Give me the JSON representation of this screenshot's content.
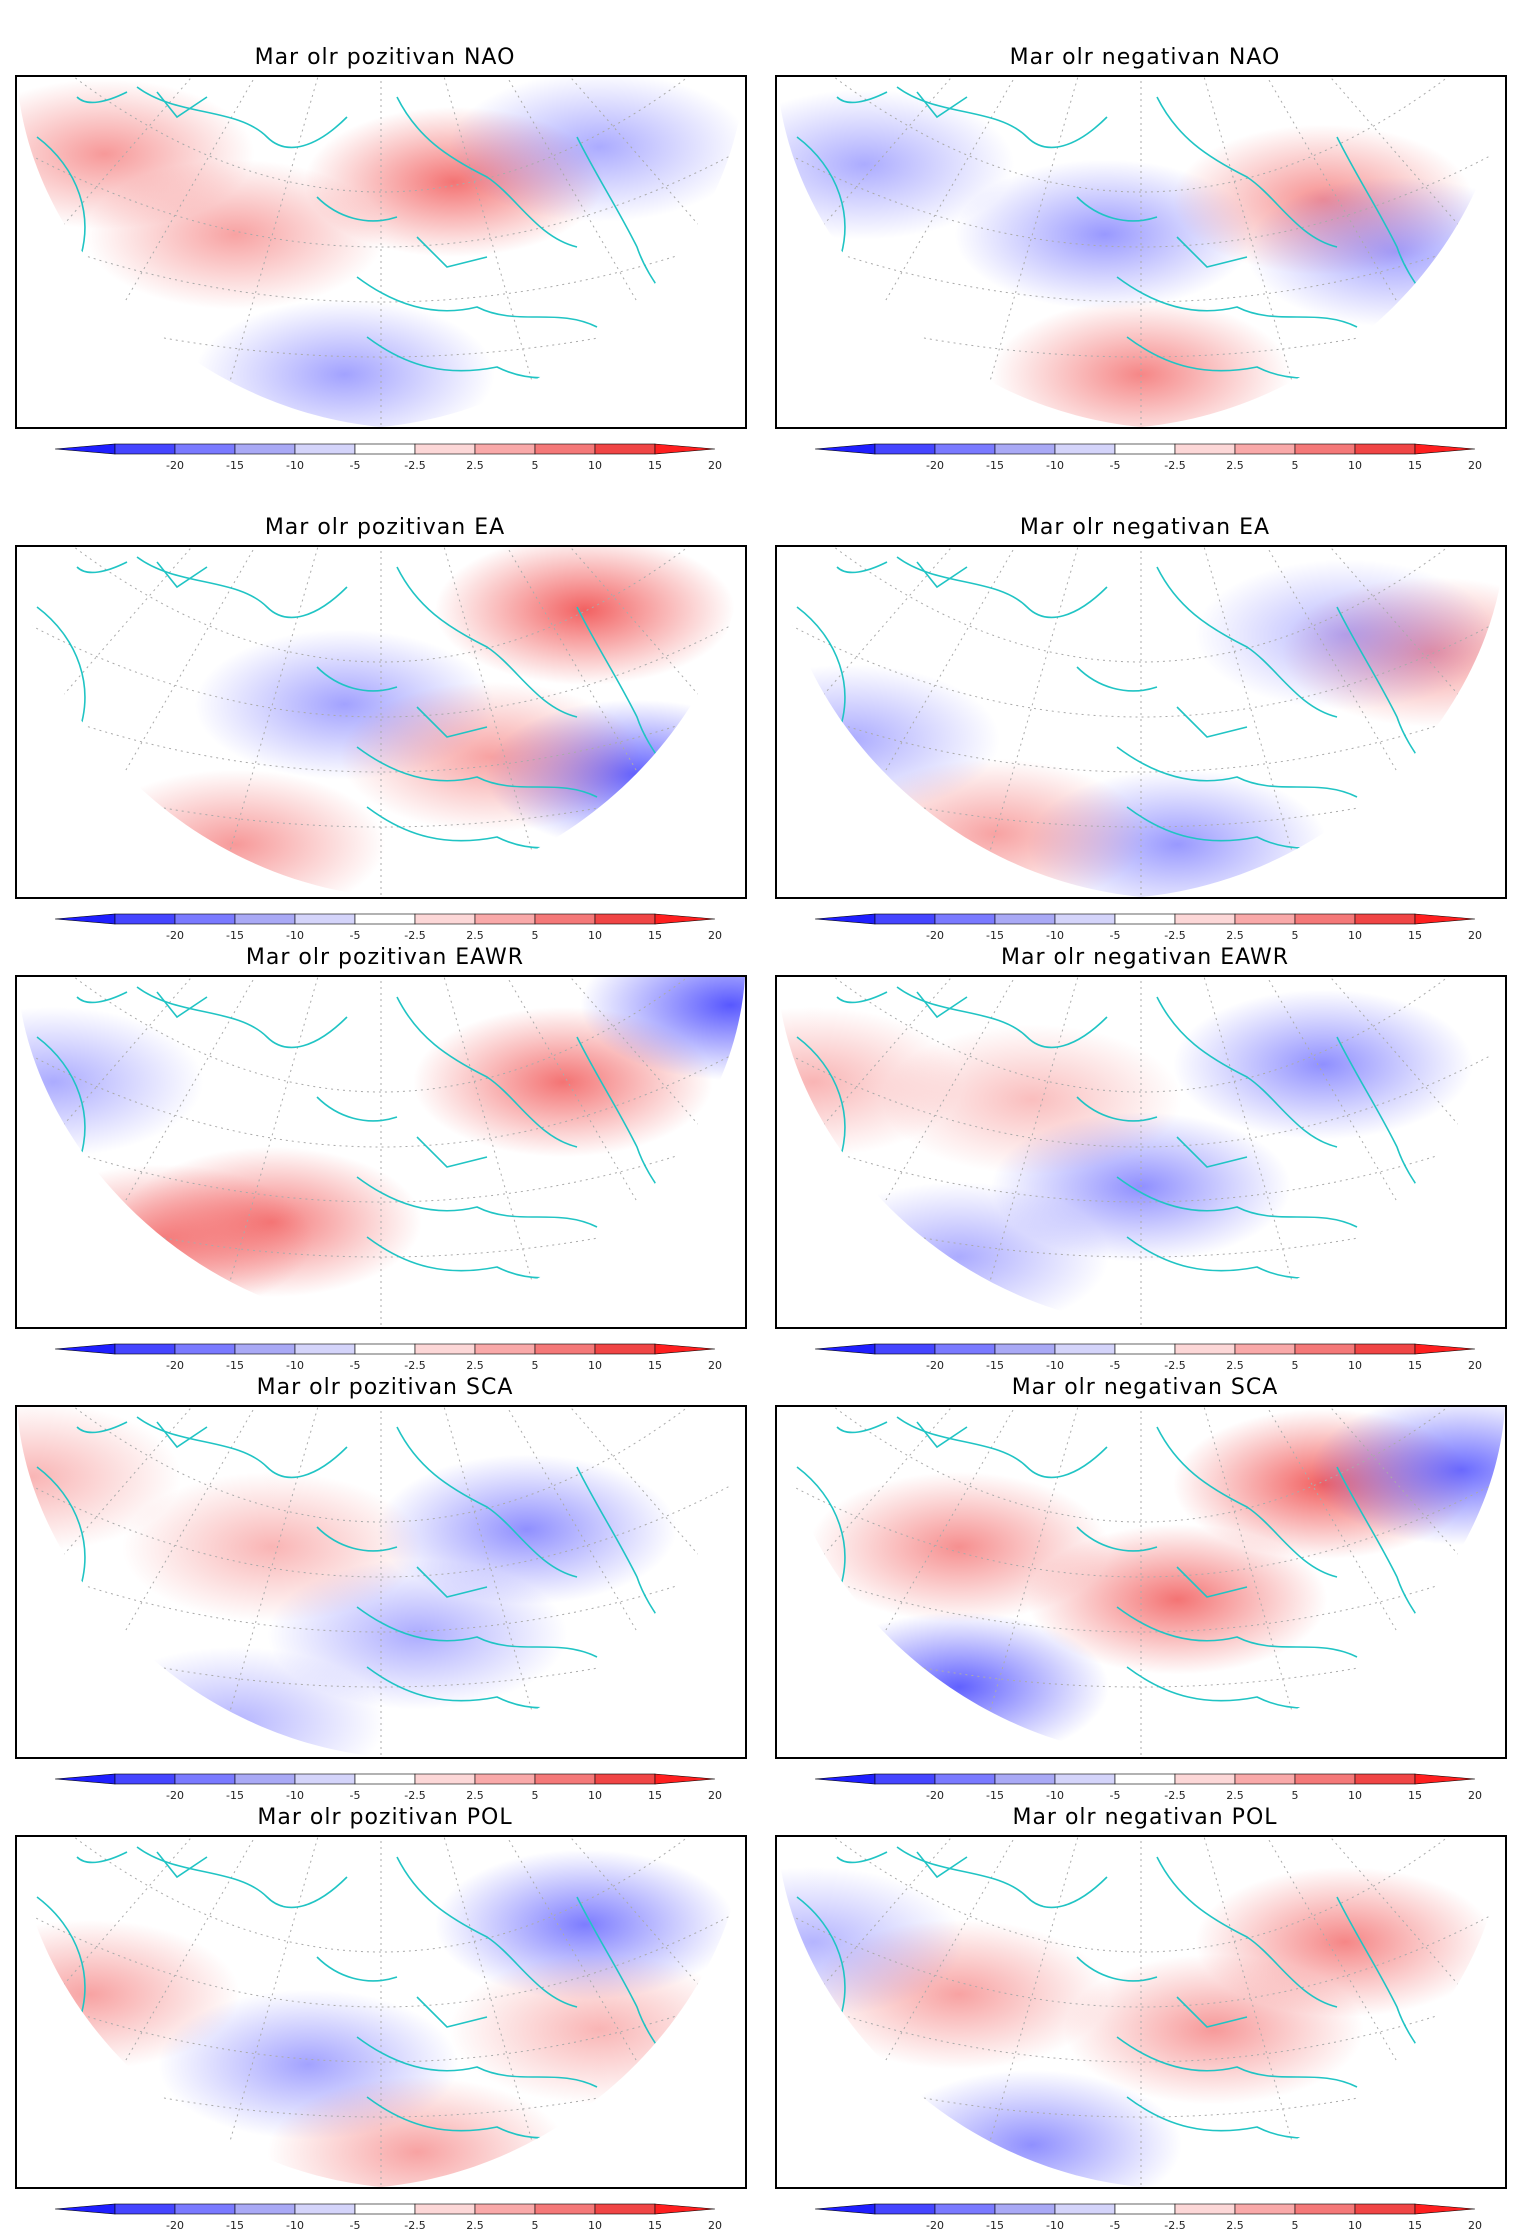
{
  "panels": [
    {
      "title": "Mar olr pozitivan NAO",
      "pattern": "NAO",
      "phase": "pozitivan"
    },
    {
      "title": "Mar olr negativan NAO",
      "pattern": "NAO",
      "phase": "negativan"
    },
    {
      "title": "Mar olr pozitivan EA",
      "pattern": "EA",
      "phase": "pozitivan"
    },
    {
      "title": "Mar olr negativan EA",
      "pattern": "EA",
      "phase": "negativan"
    },
    {
      "title": "Mar olr pozitivan EAWR",
      "pattern": "EAWR",
      "phase": "pozitivan"
    },
    {
      "title": "Mar olr negativan EAWR",
      "pattern": "EAWR",
      "phase": "negativan"
    },
    {
      "title": "Mar olr pozitivan SCA",
      "pattern": "SCA",
      "phase": "pozitivan"
    },
    {
      "title": "Mar olr negativan SCA",
      "pattern": "SCA",
      "phase": "negativan"
    },
    {
      "title": "Mar olr pozitivan POL",
      "pattern": "POL",
      "phase": "pozitivan"
    },
    {
      "title": "Mar olr negativan POL",
      "pattern": "POL",
      "phase": "negativan"
    }
  ],
  "colorbar": {
    "tick_labels": [
      "-20",
      "-15",
      "-10",
      "-5",
      "-2.5",
      "2.5",
      "5",
      "10",
      "15",
      "20"
    ],
    "colors": [
      "#1f1fff",
      "#4545ff",
      "#7a7aff",
      "#a9a9f5",
      "#d4d4fa",
      "#ffffff",
      "#fcd7d7",
      "#f9a9a9",
      "#f47878",
      "#f04545",
      "#ff1f1f"
    ]
  },
  "map": {
    "coastline_color": "#20c4c4",
    "grid_color": "#aaaaaa"
  },
  "anomaly_blobs": [
    [
      {
        "s": 1,
        "a": 0.55,
        "p": [
          0.12,
          0.22
        ]
      },
      {
        "s": 1,
        "a": 0.75,
        "p": [
          0.6,
          0.3
        ]
      },
      {
        "s": -1,
        "a": 0.5,
        "p": [
          0.45,
          0.85
        ]
      },
      {
        "s": 1,
        "a": 0.5,
        "p": [
          0.3,
          0.45
        ]
      },
      {
        "s": -1,
        "a": 0.45,
        "p": [
          0.8,
          0.2
        ]
      }
    ],
    [
      {
        "s": 1,
        "a": 0.65,
        "p": [
          0.5,
          0.85
        ]
      },
      {
        "s": -1,
        "a": 0.55,
        "p": [
          0.45,
          0.45
        ]
      },
      {
        "s": 1,
        "a": 0.6,
        "p": [
          0.75,
          0.35
        ]
      },
      {
        "s": -1,
        "a": 0.45,
        "p": [
          0.12,
          0.25
        ]
      },
      {
        "s": -1,
        "a": 0.5,
        "p": [
          0.85,
          0.5
        ]
      }
    ],
    [
      {
        "s": 1,
        "a": 0.85,
        "p": [
          0.78,
          0.18
        ]
      },
      {
        "s": -1,
        "a": 0.85,
        "p": [
          0.85,
          0.65
        ]
      },
      {
        "s": 1,
        "a": 0.55,
        "p": [
          0.3,
          0.85
        ]
      },
      {
        "s": -1,
        "a": 0.5,
        "p": [
          0.45,
          0.45
        ]
      },
      {
        "s": 1,
        "a": 0.5,
        "p": [
          0.65,
          0.6
        ]
      }
    ],
    [
      {
        "s": 1,
        "a": 0.55,
        "p": [
          0.9,
          0.3
        ]
      },
      {
        "s": -1,
        "a": 0.55,
        "p": [
          0.55,
          0.85
        ]
      },
      {
        "s": 1,
        "a": 0.5,
        "p": [
          0.3,
          0.82
        ]
      },
      {
        "s": -1,
        "a": 0.45,
        "p": [
          0.1,
          0.55
        ]
      },
      {
        "s": -1,
        "a": 0.4,
        "p": [
          0.78,
          0.25
        ]
      }
    ],
    [
      {
        "s": 1,
        "a": 0.75,
        "p": [
          0.75,
          0.3
        ]
      },
      {
        "s": 1,
        "a": 0.7,
        "p": [
          0.35,
          0.7
        ]
      },
      {
        "s": -1,
        "a": 0.9,
        "p": [
          0.98,
          0.08
        ]
      },
      {
        "s": -1,
        "a": 0.45,
        "p": [
          0.05,
          0.3
        ]
      },
      {
        "s": 1,
        "a": 0.65,
        "p": [
          0.2,
          0.75
        ]
      }
    ],
    [
      {
        "s": -1,
        "a": 0.6,
        "p": [
          0.75,
          0.25
        ]
      },
      {
        "s": -1,
        "a": 0.6,
        "p": [
          0.5,
          0.6
        ]
      },
      {
        "s": -1,
        "a": 0.45,
        "p": [
          0.25,
          0.8
        ]
      },
      {
        "s": 1,
        "a": 0.4,
        "p": [
          0.05,
          0.3
        ]
      },
      {
        "s": 1,
        "a": 0.35,
        "p": [
          0.35,
          0.35
        ]
      }
    ],
    [
      {
        "s": -1,
        "a": 0.6,
        "p": [
          0.7,
          0.35
        ]
      },
      {
        "s": -1,
        "a": 0.45,
        "p": [
          0.55,
          0.65
        ]
      },
      {
        "s": 1,
        "a": 0.4,
        "p": [
          0.35,
          0.4
        ]
      },
      {
        "s": -1,
        "a": 0.4,
        "p": [
          0.3,
          0.9
        ]
      },
      {
        "s": 1,
        "a": 0.4,
        "p": [
          0.02,
          0.2
        ]
      }
    ],
    [
      {
        "s": 1,
        "a": 0.85,
        "p": [
          0.75,
          0.22
        ]
      },
      {
        "s": 1,
        "a": 0.75,
        "p": [
          0.55,
          0.55
        ]
      },
      {
        "s": -1,
        "a": 0.85,
        "p": [
          0.25,
          0.8
        ]
      },
      {
        "s": -1,
        "a": 0.8,
        "p": [
          0.94,
          0.18
        ]
      },
      {
        "s": 1,
        "a": 0.6,
        "p": [
          0.25,
          0.4
        ]
      }
    ],
    [
      {
        "s": -1,
        "a": 0.7,
        "p": [
          0.78,
          0.25
        ]
      },
      {
        "s": 1,
        "a": 0.5,
        "p": [
          0.1,
          0.45
        ]
      },
      {
        "s": -1,
        "a": 0.5,
        "p": [
          0.4,
          0.65
        ]
      },
      {
        "s": 1,
        "a": 0.5,
        "p": [
          0.55,
          0.9
        ]
      },
      {
        "s": 1,
        "a": 0.4,
        "p": [
          0.8,
          0.55
        ]
      }
    ],
    [
      {
        "s": 1,
        "a": 0.65,
        "p": [
          0.78,
          0.3
        ]
      },
      {
        "s": 1,
        "a": 0.55,
        "p": [
          0.6,
          0.55
        ]
      },
      {
        "s": -1,
        "a": 0.6,
        "p": [
          0.35,
          0.88
        ]
      },
      {
        "s": 1,
        "a": 0.5,
        "p": [
          0.25,
          0.45
        ]
      },
      {
        "s": -1,
        "a": 0.4,
        "p": [
          0.05,
          0.3
        ]
      }
    ]
  ]
}
